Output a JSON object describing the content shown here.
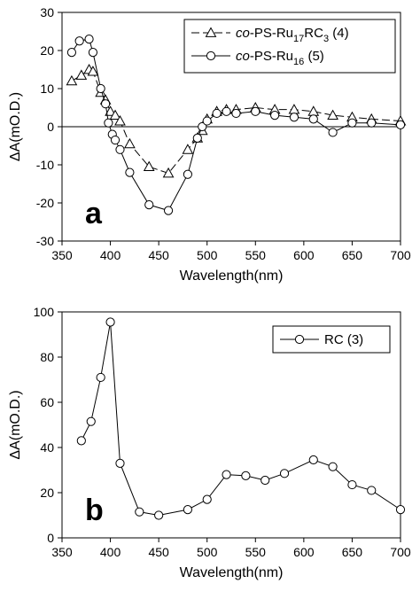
{
  "chart_data": [
    {
      "type": "line",
      "panel_label": "a",
      "xlabel": "Wavelength(nm)",
      "ylabel": "ΔA(mO.D.)",
      "xlim": [
        350,
        700
      ],
      "ylim": [
        -30,
        30
      ],
      "x_ticks": [
        350,
        400,
        450,
        500,
        550,
        600,
        650,
        700
      ],
      "y_ticks": [
        -30,
        -20,
        -10,
        0,
        10,
        20,
        30
      ],
      "zero_line": true,
      "grid": false,
      "legend_position": "top-right",
      "series": [
        {
          "name": "co-PS-Ru17RC3 (4)",
          "legend": {
            "italic": "co",
            "parts": [
              [
                "-PS-Ru",
                ""
              ],
              [
                "17",
                "sub"
              ],
              [
                "RC",
                ""
              ],
              [
                "3",
                "sub"
              ],
              [
                " (4)",
                ""
              ]
            ]
          },
          "marker": "triangle",
          "line_style": "dashed",
          "x": [
            360,
            370,
            378,
            382,
            390,
            395,
            400,
            405,
            410,
            420,
            440,
            460,
            480,
            490,
            495,
            500,
            510,
            520,
            530,
            550,
            570,
            590,
            610,
            630,
            650,
            670,
            700
          ],
          "y": [
            12,
            13.5,
            15,
            14.5,
            9,
            7,
            4,
            3,
            1.5,
            -4.5,
            -10.5,
            -12.2,
            -6,
            -3,
            -1,
            2,
            4,
            4.5,
            4.5,
            5,
            4.5,
            4.5,
            4,
            3,
            2.5,
            2,
            1.5
          ]
        },
        {
          "name": "co-PS-Ru16 (5)",
          "legend": {
            "italic": "co",
            "parts": [
              [
                "-PS-Ru",
                ""
              ],
              [
                "16",
                "sub"
              ],
              [
                " (5)",
                ""
              ]
            ]
          },
          "marker": "circle",
          "line_style": "solid",
          "x": [
            360,
            368,
            378,
            382,
            390,
            395,
            398,
            402,
            405,
            410,
            420,
            440,
            460,
            480,
            490,
            495,
            500,
            510,
            520,
            530,
            550,
            570,
            590,
            610,
            630,
            650,
            670,
            700
          ],
          "y": [
            19.5,
            22.5,
            23,
            19.5,
            10,
            6,
            1,
            -2,
            -3.5,
            -6,
            -12,
            -20.5,
            -22,
            -12.5,
            -3,
            0,
            1.5,
            3.5,
            4,
            3.5,
            4,
            3,
            2.5,
            2,
            -1.5,
            1,
            1,
            0.5
          ]
        }
      ]
    },
    {
      "type": "line",
      "panel_label": "b",
      "xlabel": "Wavelength(nm)",
      "ylabel": "ΔA(mO.D.)",
      "xlim": [
        350,
        700
      ],
      "ylim": [
        0,
        100
      ],
      "x_ticks": [
        350,
        400,
        450,
        500,
        550,
        600,
        650,
        700
      ],
      "y_ticks": [
        0,
        20,
        40,
        60,
        80,
        100
      ],
      "zero_line": false,
      "grid": false,
      "legend_position": "top-right",
      "series": [
        {
          "name": "RC (3)",
          "legend": {
            "italic": "",
            "parts": [
              [
                "RC (3)",
                ""
              ]
            ]
          },
          "marker": "circle",
          "line_style": "solid",
          "x": [
            370,
            380,
            390,
            400,
            410,
            430,
            450,
            480,
            500,
            520,
            540,
            560,
            580,
            610,
            630,
            650,
            670,
            700
          ],
          "y": [
            43,
            51.5,
            71,
            95.5,
            33,
            11.5,
            10,
            12.5,
            17,
            28,
            27.5,
            25.5,
            28.5,
            34.5,
            31.5,
            23.5,
            21,
            12.5
          ]
        }
      ]
    }
  ]
}
